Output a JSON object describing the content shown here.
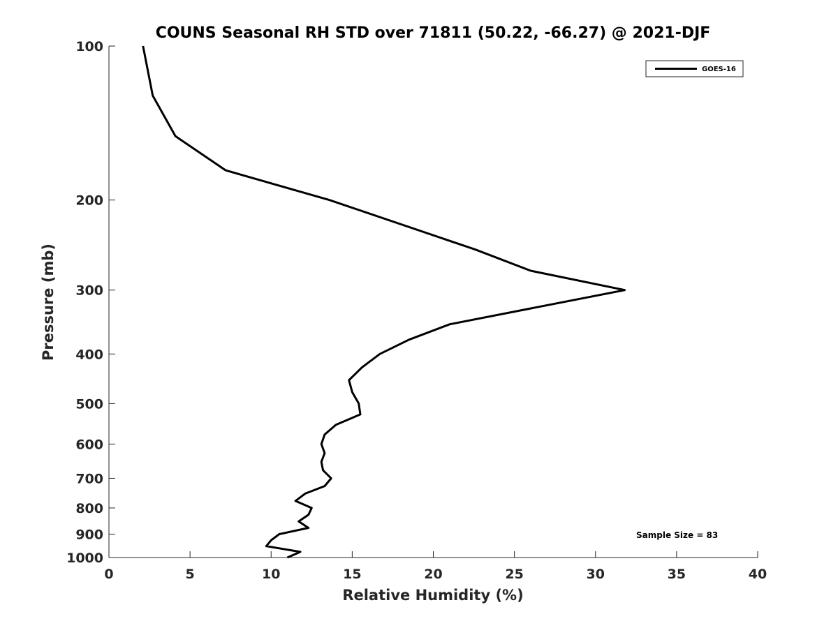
{
  "chart_data": {
    "type": "line",
    "title": "COUNS Seasonal RH STD over 71811 (50.22, -66.27) @ 2021-DJF",
    "xlabel": "Relative Humidity (%)",
    "ylabel": "Pressure (mb)",
    "xlim": [
      0,
      40
    ],
    "ylim": [
      100,
      1000
    ],
    "y_scale": "log",
    "y_reversed": true,
    "x_ticks": [
      0,
      5,
      10,
      15,
      20,
      25,
      30,
      35,
      40
    ],
    "y_ticks": [
      100,
      200,
      300,
      400,
      500,
      600,
      700,
      800,
      900,
      1000
    ],
    "grid": false,
    "legend_position": "top-right",
    "line_color": "#000000",
    "series": [
      {
        "name": "GOES-16",
        "points": [
          {
            "p": 100,
            "rh": 2.1
          },
          {
            "p": 125,
            "rh": 2.7
          },
          {
            "p": 150,
            "rh": 4.1
          },
          {
            "p": 175,
            "rh": 7.2
          },
          {
            "p": 200,
            "rh": 13.6
          },
          {
            "p": 250,
            "rh": 22.6
          },
          {
            "p": 275,
            "rh": 26.0
          },
          {
            "p": 300,
            "rh": 31.8
          },
          {
            "p": 350,
            "rh": 21.0
          },
          {
            "p": 375,
            "rh": 18.5
          },
          {
            "p": 400,
            "rh": 16.7
          },
          {
            "p": 425,
            "rh": 15.6
          },
          {
            "p": 450,
            "rh": 14.8
          },
          {
            "p": 475,
            "rh": 15.0
          },
          {
            "p": 500,
            "rh": 15.4
          },
          {
            "p": 525,
            "rh": 15.5
          },
          {
            "p": 550,
            "rh": 14.0
          },
          {
            "p": 575,
            "rh": 13.3
          },
          {
            "p": 600,
            "rh": 13.1
          },
          {
            "p": 625,
            "rh": 13.3
          },
          {
            "p": 650,
            "rh": 13.1
          },
          {
            "p": 675,
            "rh": 13.2
          },
          {
            "p": 700,
            "rh": 13.7
          },
          {
            "p": 725,
            "rh": 13.3
          },
          {
            "p": 750,
            "rh": 12.1
          },
          {
            "p": 775,
            "rh": 11.5
          },
          {
            "p": 800,
            "rh": 12.5
          },
          {
            "p": 825,
            "rh": 12.3
          },
          {
            "p": 850,
            "rh": 11.7
          },
          {
            "p": 875,
            "rh": 12.3
          },
          {
            "p": 900,
            "rh": 10.5
          },
          {
            "p": 925,
            "rh": 10.0
          },
          {
            "p": 950,
            "rh": 9.7
          },
          {
            "p": 975,
            "rh": 11.8
          },
          {
            "p": 1000,
            "rh": 11.0
          }
        ]
      }
    ],
    "annotation": "Sample Size = 83"
  }
}
